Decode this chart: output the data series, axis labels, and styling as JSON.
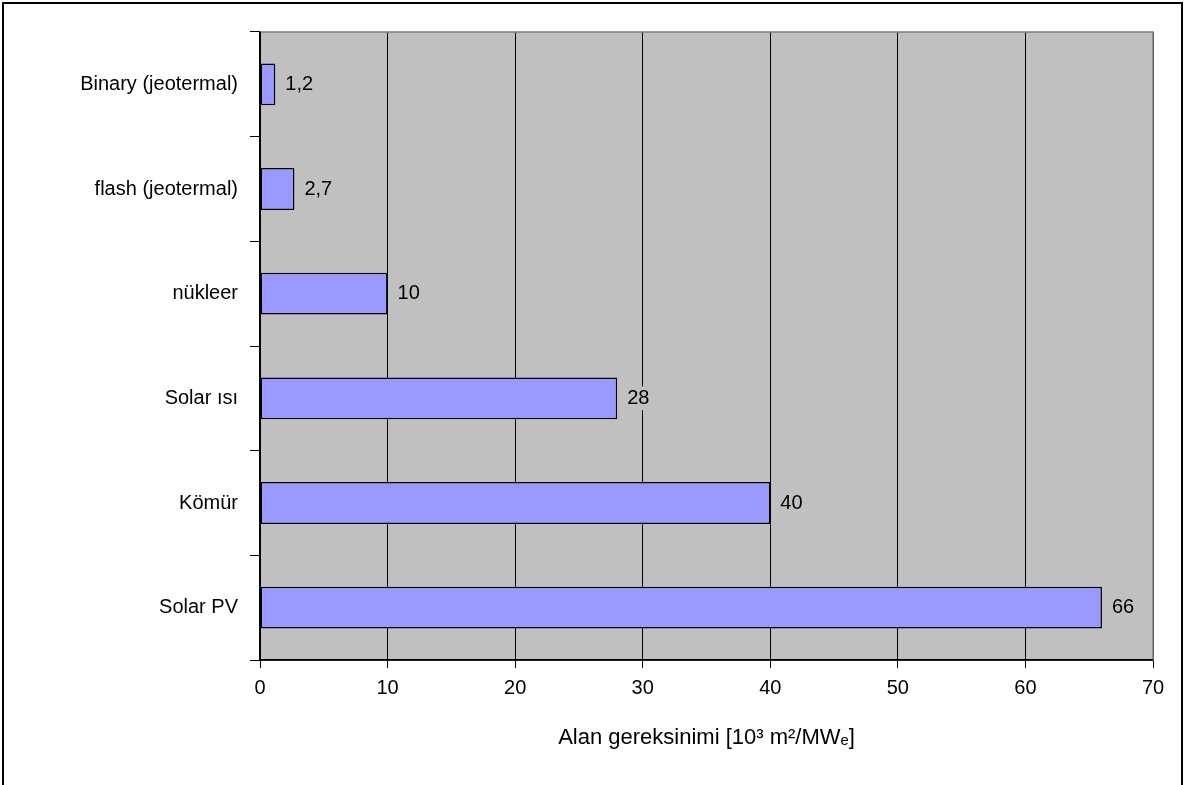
{
  "chart_data": {
    "type": "bar",
    "orientation": "horizontal",
    "xlabel": "Alan gereksinimi [10³ m²/MWₑ]",
    "categories": [
      "Binary (jeotermal)",
      "flash (jeotermal)",
      "nükleer",
      "Solar ısı",
      "Kömür",
      "Solar PV"
    ],
    "values": [
      1.2,
      2.7,
      10,
      28,
      40,
      66
    ],
    "value_labels": [
      "1,2",
      "2,7",
      "10",
      "28",
      "40",
      "66"
    ],
    "color": "#9999ff",
    "xlim": [
      0,
      70
    ],
    "xticks": [
      0,
      10,
      20,
      30,
      40,
      50,
      60,
      70
    ],
    "grid": "x",
    "legend": false
  }
}
